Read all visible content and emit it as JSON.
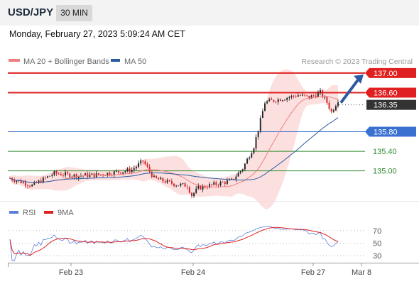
{
  "header": {
    "symbol": "USD/JPY",
    "timeframe": "30 MIN",
    "datetime": "Monday, February 27, 2023 5:09:24 AM CET"
  },
  "legend": {
    "items": [
      {
        "name": "MA 20 + Bollinger Bands",
        "color": "#f08080"
      },
      {
        "name": "MA 50",
        "color": "#2d5aa0"
      }
    ],
    "source": "Research © 2023 Trading Central"
  },
  "rsi_legend": {
    "items": [
      {
        "name": "RSI",
        "color": "#5b7fd9"
      },
      {
        "name": "9MA",
        "color": "#e02020"
      }
    ]
  },
  "chart_data": [
    {
      "type": "candlestick",
      "instrument": "USD/JPY",
      "interval": "30 MIN",
      "ylim": [
        134.4,
        137.1
      ],
      "x_ticks": [
        "Feb 23",
        "Feb 24",
        "Feb 27",
        "Mar 8"
      ],
      "levels": [
        {
          "value": 137.0,
          "label": "137.00",
          "color": "#e02020",
          "style": "resistance"
        },
        {
          "value": 136.6,
          "label": "136.60",
          "color": "#e02020",
          "style": "resistance"
        },
        {
          "value": 136.35,
          "label": "136.35",
          "color": "#333333",
          "style": "last"
        },
        {
          "value": 135.8,
          "label": "135.80",
          "color": "#3a70d0",
          "style": "pivot"
        },
        {
          "value": 135.4,
          "label": "135.40",
          "color": "#2e8b2e",
          "style": "support"
        },
        {
          "value": 135.0,
          "label": "135.00",
          "color": "#2e8b2e",
          "style": "support"
        }
      ],
      "anchors": [
        [
          0,
          134.85
        ],
        [
          10,
          134.7
        ],
        [
          20,
          134.95
        ],
        [
          30,
          134.9
        ],
        [
          40,
          134.92
        ],
        [
          55,
          135.02
        ],
        [
          60,
          135.2
        ],
        [
          65,
          134.85
        ],
        [
          75,
          134.72
        ],
        [
          80,
          134.7
        ],
        [
          82,
          134.5
        ],
        [
          85,
          134.65
        ],
        [
          95,
          134.75
        ],
        [
          100,
          134.8
        ],
        [
          105,
          135.05
        ],
        [
          110,
          135.5
        ],
        [
          112,
          135.85
        ],
        [
          115,
          136.4
        ],
        [
          120,
          136.45
        ],
        [
          125,
          136.5
        ],
        [
          130,
          136.55
        ],
        [
          135,
          136.5
        ],
        [
          140,
          136.6
        ],
        [
          143,
          136.4
        ],
        [
          145,
          136.2
        ],
        [
          148,
          136.45
        ]
      ],
      "candle_count": 149
    },
    {
      "type": "line",
      "name": "RSI",
      "ylim": [
        20,
        80
      ],
      "y_ticks": [
        70,
        50,
        30
      ],
      "series": [
        {
          "name": "RSI",
          "color": "#5b7fd9"
        },
        {
          "name": "9MA",
          "color": "#e02020"
        }
      ]
    }
  ]
}
